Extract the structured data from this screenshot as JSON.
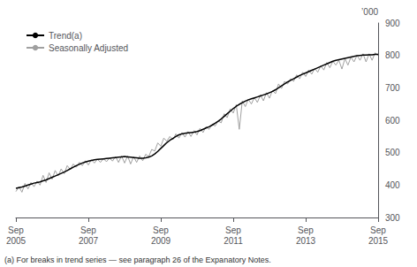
{
  "chart_data": {
    "type": "line",
    "ylabel": "’000",
    "footnote": "(a) For breaks in trend series — see paragraph 26 of the Expanatory Notes.",
    "legend": "upper left",
    "grid": false,
    "ylim": [
      300,
      900
    ],
    "yticks": [
      300,
      400,
      500,
      600,
      700,
      800,
      900
    ],
    "categories": [
      "Sep\n2005",
      null,
      null,
      null,
      null,
      null,
      null,
      null,
      null,
      null,
      null,
      null,
      null,
      null,
      null,
      null,
      null,
      null,
      null,
      null,
      null,
      null,
      null,
      null,
      "Sep\n2007",
      null,
      null,
      null,
      null,
      null,
      null,
      null,
      null,
      null,
      null,
      null,
      null,
      null,
      null,
      null,
      null,
      null,
      null,
      null,
      null,
      null,
      null,
      null,
      "Sep\n2009",
      null,
      null,
      null,
      null,
      null,
      null,
      null,
      null,
      null,
      null,
      null,
      null,
      null,
      null,
      null,
      null,
      null,
      null,
      null,
      null,
      null,
      null,
      null,
      "Sep\n2011",
      null,
      null,
      null,
      null,
      null,
      null,
      null,
      null,
      null,
      null,
      null,
      null,
      null,
      null,
      null,
      null,
      null,
      null,
      null,
      null,
      null,
      null,
      null,
      "Sep\n2013",
      null,
      null,
      null,
      null,
      null,
      null,
      null,
      null,
      null,
      null,
      null,
      null,
      null,
      null,
      null,
      null,
      null,
      null,
      null,
      null,
      null,
      null,
      null,
      "Sep\n2015"
    ],
    "series": [
      {
        "name": "Trend(a)",
        "color": "#000000",
        "values": [
          390,
          392,
          394,
          397,
          400,
          403,
          406,
          408,
          410,
          413,
          416,
          420,
          424,
          428,
          432,
          436,
          440,
          445,
          450,
          455,
          460,
          464,
          468,
          471,
          474,
          476,
          478,
          479,
          480,
          481,
          482,
          483,
          484,
          485,
          486,
          487,
          488,
          487,
          486,
          485,
          484,
          483,
          483,
          484,
          486,
          490,
          496,
          504,
          513,
          522,
          531,
          538,
          544,
          550,
          555,
          558,
          560,
          561,
          562,
          563,
          565,
          568,
          572,
          576,
          580,
          585,
          591,
          597,
          604,
          612,
          620,
          628,
          636,
          643,
          649,
          654,
          659,
          663,
          666,
          669,
          672,
          675,
          678,
          681,
          685,
          689,
          694,
          700,
          706,
          712,
          718,
          723,
          728,
          733,
          738,
          742,
          746,
          750,
          754,
          758,
          762,
          766,
          770,
          774,
          778,
          782,
          785,
          787,
          789,
          791,
          793,
          795,
          797,
          799,
          800,
          801,
          801,
          802,
          802,
          803,
          803
        ]
      },
      {
        "name": "Seasonally Adjusted",
        "color": "#a0a0a0",
        "values": [
          380,
          395,
          378,
          405,
          388,
          408,
          395,
          412,
          400,
          430,
          408,
          438,
          418,
          445,
          428,
          450,
          435,
          460,
          448,
          465,
          455,
          470,
          460,
          475,
          462,
          478,
          468,
          480,
          470,
          482,
          472,
          484,
          474,
          488,
          470,
          490,
          468,
          490,
          465,
          488,
          470,
          490,
          475,
          495,
          488,
          510,
          505,
          530,
          520,
          545,
          535,
          550,
          540,
          558,
          545,
          562,
          548,
          565,
          550,
          568,
          555,
          575,
          562,
          580,
          572,
          588,
          582,
          598,
          592,
          620,
          608,
          635,
          622,
          648,
          572,
          660,
          642,
          665,
          650,
          670,
          655,
          678,
          660,
          685,
          668,
          692,
          682,
          712,
          698,
          720,
          712,
          728,
          720,
          740,
          728,
          748,
          735,
          755,
          742,
          760,
          748,
          768,
          755,
          778,
          762,
          782,
          770,
          785,
          758,
          790,
          770,
          795,
          780,
          800,
          785,
          805,
          780,
          805,
          785,
          808,
          800
        ]
      }
    ]
  }
}
